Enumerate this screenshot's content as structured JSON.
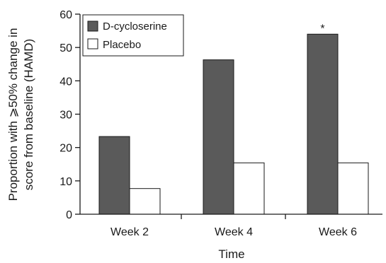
{
  "chart_data": {
    "type": "bar",
    "categories": [
      "Week 2",
      "Week 4",
      "Week 6"
    ],
    "series": [
      {
        "name": "D-cycloserine",
        "values": [
          23.3,
          46.3,
          54.0
        ],
        "color": "#5a5a5a"
      },
      {
        "name": "Placebo",
        "values": [
          7.7,
          15.4,
          15.4
        ],
        "color": "#ffffff"
      }
    ],
    "xlabel": "Time",
    "ylabel": [
      "Proportion with ⩾50% change in",
      "score from baseline (HAMD)"
    ],
    "ylim": [
      0,
      60
    ],
    "yticks": [
      0,
      10,
      20,
      30,
      40,
      50,
      60
    ],
    "grid": false,
    "legend": "top-left",
    "annotations": [
      {
        "category": "Week 6",
        "series": "D-cycloserine",
        "text": "*"
      }
    ]
  }
}
